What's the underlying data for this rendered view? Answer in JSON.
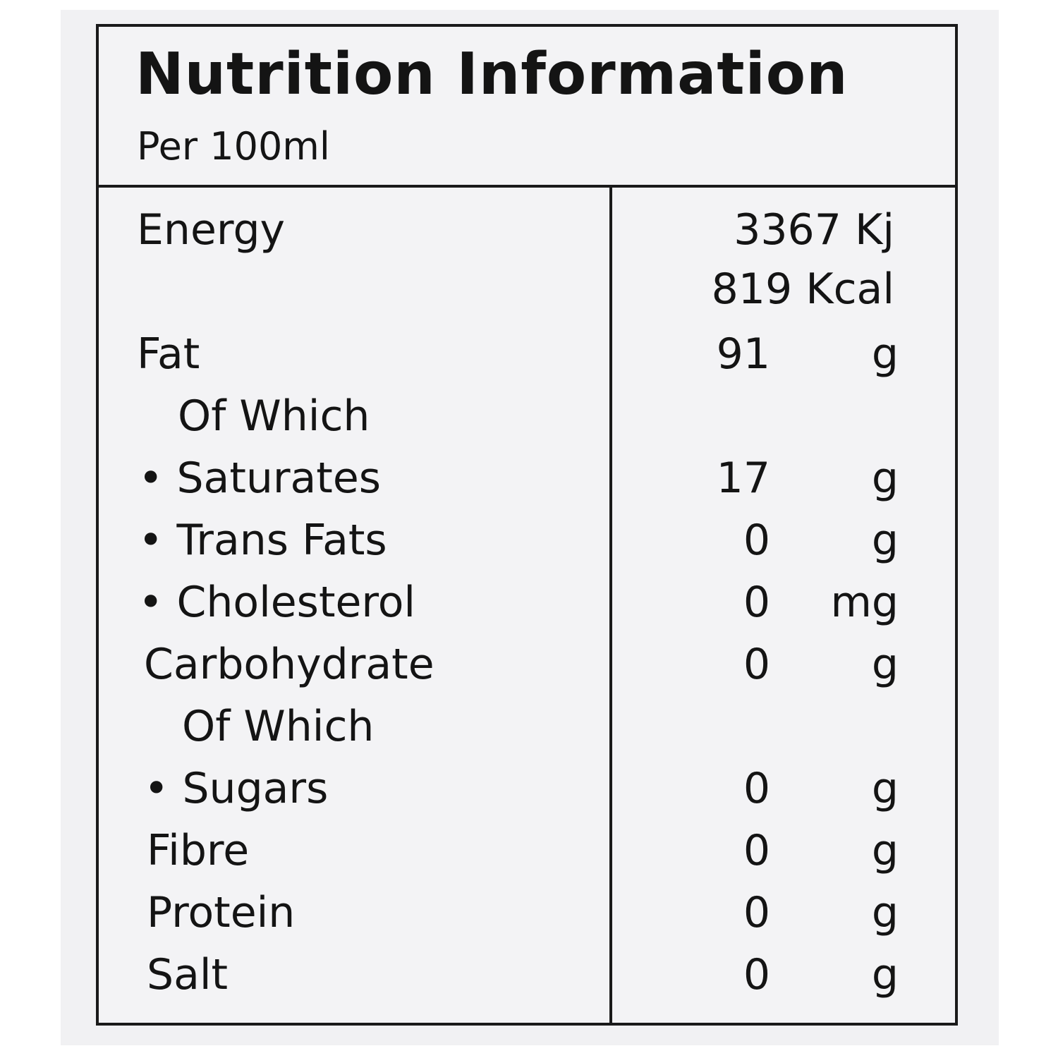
{
  "title": "Nutrition Information",
  "per": "Per 100ml",
  "energy": {
    "label": "Energy",
    "kj": "3367 Kj",
    "kcal": "819 Kcal"
  },
  "nutrients": [
    {
      "label": "Fat",
      "value": "91",
      "unit": "g"
    },
    {
      "label": "Of Which",
      "value": "",
      "unit": ""
    },
    {
      "label": "• Saturates",
      "value": "17",
      "unit": "g"
    },
    {
      "label": "• Trans Fats",
      "value": "0",
      "unit": "g"
    },
    {
      "label": "• Cholesterol",
      "value": "0",
      "unit": "mg"
    },
    {
      "label": "Carbohydrate",
      "value": "0",
      "unit": "g"
    },
    {
      "label": "Of Which",
      "value": "",
      "unit": ""
    },
    {
      "label": "• Sugars",
      "value": "0",
      "unit": "g"
    },
    {
      "label": "Fibre",
      "value": "0",
      "unit": "g"
    },
    {
      "label": "Protein",
      "value": "0",
      "unit": "g"
    },
    {
      "label": "Salt",
      "value": "0",
      "unit": "g"
    }
  ]
}
